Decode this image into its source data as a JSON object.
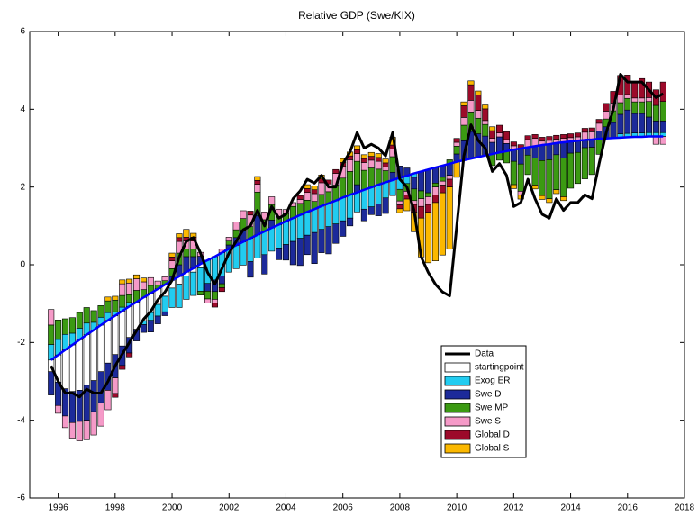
{
  "chart_data": {
    "type": "stacked-bar-line",
    "title": "Relative GDP (Swe/KIX)",
    "x": [
      1995.75,
      1996,
      1996.25,
      1996.5,
      1996.75,
      1997,
      1997.25,
      1997.5,
      1997.75,
      1998,
      1998.25,
      1998.5,
      1998.75,
      1999,
      1999.25,
      1999.5,
      1999.75,
      2000,
      2000.25,
      2000.5,
      2000.75,
      2001,
      2001.25,
      2001.5,
      2001.75,
      2002,
      2002.25,
      2002.5,
      2002.75,
      2003,
      2003.25,
      2003.5,
      2003.75,
      2004,
      2004.25,
      2004.5,
      2004.75,
      2005,
      2005.25,
      2005.5,
      2005.75,
      2006,
      2006.25,
      2006.5,
      2006.75,
      2007,
      2007.25,
      2007.5,
      2007.75,
      2008,
      2008.25,
      2008.5,
      2008.75,
      2009,
      2009.25,
      2009.5,
      2009.75,
      2010,
      2010.25,
      2010.5,
      2010.75,
      2011,
      2011.25,
      2011.5,
      2011.75,
      2012,
      2012.25,
      2012.5,
      2012.75,
      2013,
      2013.25,
      2013.5,
      2013.75,
      2014,
      2014.25,
      2014.5,
      2014.75,
      2015,
      2015.25,
      2015.5,
      2015.75,
      2016,
      2016.25,
      2016.5,
      2016.75,
      2017,
      2017.25
    ],
    "line": {
      "name": "Data",
      "color": "#000000",
      "values": [
        -2.6,
        -3.0,
        -3.3,
        -3.3,
        -3.4,
        -3.2,
        -3.3,
        -3.3,
        -3.0,
        -2.6,
        -2.3,
        -2.0,
        -1.7,
        -1.4,
        -1.2,
        -0.9,
        -0.7,
        -0.4,
        0.2,
        0.6,
        0.7,
        0.3,
        -0.2,
        -0.5,
        -0.1,
        0.3,
        0.6,
        0.9,
        1.0,
        1.4,
        1.0,
        1.5,
        1.2,
        1.3,
        1.7,
        1.9,
        2.2,
        2.1,
        2.3,
        2.0,
        2.0,
        2.6,
        2.9,
        3.4,
        3.0,
        3.1,
        3.0,
        2.8,
        3.4,
        2.2,
        2.0,
        1.4,
        0.2,
        -0.2,
        -0.5,
        -0.7,
        -0.8,
        1.0,
        2.8,
        3.6,
        3.2,
        3.0,
        2.4,
        2.6,
        2.3,
        1.5,
        1.6,
        2.2,
        1.7,
        1.3,
        1.2,
        1.7,
        1.4,
        1.6,
        1.6,
        1.8,
        1.7,
        2.6,
        3.4,
        4.0,
        4.9,
        4.7,
        4.7,
        4.7,
        4.5,
        4.3,
        4.4
      ]
    },
    "baseline": {
      "color": "#0000ff",
      "values": [
        -2.45,
        -2.32,
        -2.19,
        -2.06,
        -1.93,
        -1.8,
        -1.68,
        -1.55,
        -1.43,
        -1.31,
        -1.19,
        -1.07,
        -0.96,
        -0.84,
        -0.73,
        -0.62,
        -0.51,
        -0.4,
        -0.3,
        -0.19,
        -0.09,
        0.02,
        0.12,
        0.21,
        0.31,
        0.41,
        0.5,
        0.59,
        0.68,
        0.77,
        0.86,
        0.95,
        1.03,
        1.12,
        1.2,
        1.28,
        1.36,
        1.43,
        1.51,
        1.58,
        1.65,
        1.73,
        1.8,
        1.86,
        1.93,
        1.99,
        2.06,
        2.12,
        2.18,
        2.24,
        2.29,
        2.35,
        2.4,
        2.45,
        2.5,
        2.55,
        2.6,
        2.65,
        2.69,
        2.73,
        2.77,
        2.81,
        2.85,
        2.89,
        2.92,
        2.96,
        2.99,
        3.02,
        3.05,
        3.08,
        3.1,
        3.13,
        3.15,
        3.17,
        3.19,
        3.21,
        3.22,
        3.24,
        3.25,
        3.26,
        3.27,
        3.28,
        3.29,
        3.29,
        3.3,
        3.3,
        3.3
      ]
    },
    "series": [
      {
        "name": "startingpoint",
        "color": "#ffffff",
        "values": [
          -0.3,
          -0.7,
          -1.0,
          -1.2,
          -1.3,
          -1.3,
          -1.3,
          -1.2,
          -1.1,
          -1.0,
          -0.9,
          -0.8,
          -0.7,
          -0.6,
          -0.5,
          -0.4,
          -0.3,
          -0.2,
          -0.2,
          -0.1,
          -0.1,
          -0.1,
          0,
          0,
          0,
          0,
          0,
          0,
          0,
          0,
          0,
          0,
          0,
          0,
          0,
          0,
          0,
          0,
          0,
          0,
          0,
          0,
          0,
          0,
          0,
          0,
          0,
          0,
          0,
          0,
          0,
          0,
          0,
          0,
          0,
          0,
          0,
          0,
          0,
          0,
          0,
          0,
          0,
          0,
          0,
          0,
          0,
          0,
          0,
          0,
          0,
          0,
          0,
          0,
          0,
          0,
          0,
          0,
          0,
          0,
          0,
          0,
          0,
          0,
          0,
          0,
          0
        ]
      },
      {
        "name": "Exog ER",
        "color": "#22ccf0",
        "values": [
          0.4,
          0.4,
          0.4,
          0.3,
          0.3,
          0.3,
          0.2,
          0.2,
          0.2,
          0.1,
          0.1,
          0.1,
          0,
          -0.1,
          -0.2,
          -0.3,
          -0.4,
          -0.5,
          -0.6,
          -0.6,
          -0.6,
          -0.6,
          -0.6,
          -0.6,
          -0.6,
          -0.6,
          -0.6,
          -0.6,
          -0.6,
          -0.6,
          -0.6,
          -0.6,
          -0.6,
          -0.6,
          -0.6,
          -0.6,
          -0.6,
          -0.6,
          -0.6,
          -0.6,
          -0.6,
          -0.6,
          -0.6,
          -0.5,
          -0.5,
          -0.5,
          -0.5,
          -0.4,
          -0.4,
          -0.3,
          -0.2,
          -0.1,
          0,
          0,
          0,
          0,
          0,
          0,
          0,
          0,
          0,
          0,
          0,
          0,
          0,
          0,
          0,
          0,
          0,
          0,
          0,
          0,
          0,
          0,
          0,
          0,
          0,
          0,
          0,
          0,
          0.1,
          0.1,
          0.1,
          0.1,
          0.1,
          0.1,
          0.1
        ]
      },
      {
        "name": "Swe D",
        "color": "#1c2a9a",
        "values": [
          -0.6,
          -0.6,
          -0.7,
          -0.8,
          -0.8,
          -0.9,
          -0.8,
          -0.8,
          -0.7,
          -0.6,
          -0.5,
          -0.4,
          -0.3,
          -0.2,
          -0.3,
          -0.2,
          -0.1,
          0.1,
          0.3,
          0.4,
          0.3,
          0.2,
          -0.2,
          -0.3,
          -0.2,
          0.1,
          0.2,
          0.3,
          -0.4,
          0.5,
          -0.5,
          0.2,
          -0.3,
          -0.4,
          -0.6,
          -0.7,
          -0.5,
          -0.8,
          -0.6,
          -0.7,
          -0.5,
          -0.4,
          -0.2,
          0.2,
          -0.3,
          -0.2,
          -0.3,
          -0.4,
          0.2,
          0.3,
          0.2,
          -0.3,
          -0.5,
          -0.6,
          -0.4,
          -0.3,
          -0.3,
          0.2,
          0.5,
          0.7,
          0.6,
          0.5,
          0.3,
          0.4,
          0.2,
          -0.3,
          -0.4,
          -0.2,
          -0.3,
          -0.4,
          -0.4,
          -0.3,
          -0.4,
          -0.3,
          -0.3,
          -0.2,
          -0.2,
          0.2,
          0.3,
          0.4,
          0.5,
          0.6,
          0.5,
          0.5,
          0.4,
          0.3,
          0.3
        ]
      },
      {
        "name": "Swe MP",
        "color": "#3b9a12",
        "values": [
          0.5,
          0.5,
          0.4,
          0.4,
          0.4,
          0.4,
          0.3,
          0.3,
          0.3,
          0.3,
          0.3,
          0.2,
          0.3,
          0.2,
          0.2,
          0.1,
          0.1,
          0.2,
          0.3,
          0.2,
          0.2,
          -0.1,
          -0.2,
          -0.2,
          -0.1,
          0.1,
          0.2,
          0.3,
          0.3,
          0.6,
          0.3,
          0.4,
          0.2,
          0.2,
          0.3,
          0.3,
          0.3,
          0.2,
          0.3,
          0.3,
          0.4,
          0.5,
          0.6,
          0.6,
          0.5,
          0.5,
          0.4,
          0.3,
          0.4,
          -0.3,
          -0.2,
          -0.3,
          -0.2,
          -0.1,
          -0.1,
          -0.1,
          0.1,
          0.2,
          0.4,
          0.5,
          0.4,
          0.3,
          -0.3,
          -0.2,
          -0.3,
          -0.6,
          -0.7,
          -0.5,
          -0.7,
          -0.9,
          -1.0,
          -0.9,
          -1.0,
          -0.9,
          -0.8,
          -0.8,
          -0.7,
          -0.4,
          0.2,
          0.3,
          0.3,
          0.3,
          0.3,
          0.3,
          0.4,
          0.4,
          0.5
        ]
      },
      {
        "name": "Swe S",
        "color": "#f59ac8",
        "values": [
          0.4,
          -0.2,
          -0.3,
          -0.4,
          -0.5,
          -0.5,
          -0.6,
          -0.6,
          -0.5,
          -0.4,
          0.3,
          0.3,
          0.3,
          0.2,
          0.2,
          0.1,
          0.1,
          0.2,
          0.3,
          0.2,
          0.2,
          0.1,
          -0.1,
          -0.1,
          0.1,
          0.1,
          0.2,
          0.2,
          0.3,
          0.2,
          0.2,
          0.2,
          0.2,
          0.1,
          0.1,
          0.1,
          0.2,
          0.2,
          0.3,
          0.2,
          0.3,
          0.3,
          0.3,
          0.2,
          0.2,
          0.2,
          0.2,
          0.1,
          0.2,
          -0.1,
          -0.1,
          -0.1,
          -0.2,
          -0.2,
          -0.2,
          -0.1,
          -0.1,
          0.1,
          0.2,
          0.3,
          0.2,
          0.1,
          0.1,
          0.1,
          0.1,
          0.1,
          -0.1,
          0.2,
          0.2,
          0.1,
          0.1,
          0.1,
          0.1,
          0.1,
          0.1,
          0.2,
          0.2,
          0.2,
          0.2,
          0.2,
          0.2,
          0.1,
          0.1,
          0.1,
          0.1,
          -0.2,
          -0.2
        ]
      },
      {
        "name": "Global D",
        "color": "#9c0a2a",
        "values": [
          0,
          0,
          0,
          0,
          0,
          0,
          0,
          0,
          0,
          -0.1,
          -0.1,
          -0.1,
          0,
          0,
          0,
          0,
          0,
          0.1,
          0.1,
          0.1,
          0.1,
          0,
          0,
          -0.1,
          -0.1,
          0,
          0,
          0,
          0.1,
          0.1,
          0,
          0,
          0,
          0,
          0,
          0.1,
          0.1,
          0.1,
          0.1,
          0.1,
          0.1,
          0.1,
          0.1,
          0.1,
          0.1,
          0.1,
          0.1,
          0.1,
          0.1,
          -0.1,
          -0.1,
          -0.2,
          -0.3,
          -0.2,
          -0.2,
          -0.2,
          -0.2,
          0.1,
          0.3,
          0.4,
          0.4,
          0.3,
          0.2,
          0.2,
          0.2,
          0.1,
          0.1,
          0.1,
          0.1,
          0.1,
          0.1,
          0.1,
          0.1,
          0.1,
          0.1,
          0.1,
          0.1,
          0.1,
          0.2,
          0.3,
          0.5,
          0.5,
          0.4,
          0.5,
          0.4,
          0.4,
          0.5
        ]
      },
      {
        "name": "Global S",
        "color": "#fbb800",
        "values": [
          0,
          0,
          0,
          0,
          0,
          0,
          0,
          0,
          0.1,
          0.1,
          0.1,
          0.1,
          0.1,
          0.1,
          0,
          0,
          0,
          0.1,
          0.1,
          0.2,
          0.1,
          0,
          0,
          0,
          0,
          0,
          0,
          0,
          0,
          0.1,
          0,
          0,
          0,
          0,
          0,
          0,
          0.1,
          0.1,
          0.1,
          0,
          0,
          0.1,
          0.1,
          0.1,
          0.1,
          0.1,
          0.1,
          0.1,
          0.2,
          -0.1,
          -0.3,
          -0.5,
          -1.0,
          -1.3,
          -1.5,
          -1.6,
          -1.6,
          -0.4,
          0.1,
          0.1,
          0.1,
          0.1,
          0.1,
          0,
          0,
          -0.1,
          -0.1,
          0,
          -0.1,
          -0.1,
          -0.1,
          -0.1,
          -0.1,
          0,
          0,
          0,
          0,
          0,
          0,
          0,
          0,
          0,
          0,
          0,
          0,
          0,
          0
        ]
      }
    ],
    "xlim": [
      1995,
      2018
    ],
    "xticks": [
      1996,
      1998,
      2000,
      2002,
      2004,
      2006,
      2008,
      2010,
      2012,
      2014,
      2016,
      2018
    ],
    "ylim": [
      -6,
      6
    ],
    "yticks": [
      -6,
      -4,
      -2,
      0,
      2,
      4,
      6
    ],
    "legend": "lower-right"
  }
}
